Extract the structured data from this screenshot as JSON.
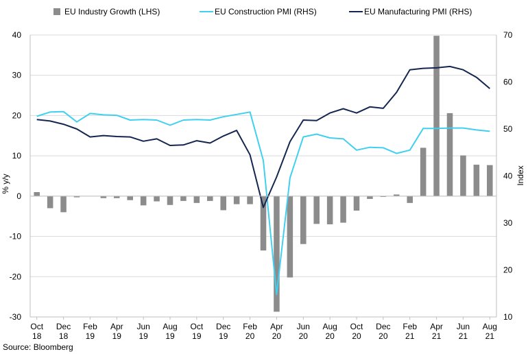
{
  "chart_data": {
    "type": "bar+line",
    "title": "",
    "legend": [
      {
        "name": "EU Industry Growth (LHS)",
        "kind": "bar",
        "color": "#8c8c8c"
      },
      {
        "name": "EU Construction PMI (RHS)",
        "kind": "line",
        "color": "#3fd0f0"
      },
      {
        "name": "EU Manufacturing PMI (RHS)",
        "kind": "line",
        "color": "#14264f"
      }
    ],
    "ylabel_left": "% y/y",
    "ylabel_right": "Index",
    "ylim_left": [
      -30,
      40
    ],
    "ylim_right": [
      10,
      70
    ],
    "yticks_left": [
      40,
      30,
      20,
      10,
      0,
      -10,
      -20,
      -30
    ],
    "yticks_right": [
      70,
      60,
      50,
      40,
      30,
      20,
      10
    ],
    "months": [
      "Oct 18",
      "Nov 18",
      "Dec 18",
      "Jan 19",
      "Feb 19",
      "Mar 19",
      "Apr 19",
      "May 19",
      "Jun 19",
      "Jul 19",
      "Aug 19",
      "Sep 19",
      "Oct 19",
      "Nov 19",
      "Dec 19",
      "Jan 20",
      "Feb 20",
      "Mar 20",
      "Apr 20",
      "May 20",
      "Jun 20",
      "Jul 20",
      "Aug 20",
      "Sep 20",
      "Oct 20",
      "Nov 20",
      "Dec 20",
      "Jan 21",
      "Feb 21",
      "Mar 21",
      "Apr 21",
      "May 21",
      "Jun 21",
      "Jul 21",
      "Aug 21"
    ],
    "x_tick_labels": [
      {
        "top": "Oct",
        "bottom": "18"
      },
      {
        "top": "Dec",
        "bottom": "18"
      },
      {
        "top": "Feb",
        "bottom": "19"
      },
      {
        "top": "Apr",
        "bottom": "19"
      },
      {
        "top": "Jun",
        "bottom": "19"
      },
      {
        "top": "Aug",
        "bottom": "19"
      },
      {
        "top": "Oct",
        "bottom": "19"
      },
      {
        "top": "Dec",
        "bottom": "19"
      },
      {
        "top": "Feb",
        "bottom": "20"
      },
      {
        "top": "Apr",
        "bottom": "20"
      },
      {
        "top": "Jun",
        "bottom": "20"
      },
      {
        "top": "Aug",
        "bottom": "20"
      },
      {
        "top": "Oct",
        "bottom": "20"
      },
      {
        "top": "Dec",
        "bottom": "20"
      },
      {
        "top": "Feb",
        "bottom": "21"
      },
      {
        "top": "Apr",
        "bottom": "21"
      },
      {
        "top": "Jun",
        "bottom": "21"
      },
      {
        "top": "Aug",
        "bottom": "21"
      }
    ],
    "series": [
      {
        "name": "EU Industry Growth (LHS)",
        "axis": "left",
        "type": "bar",
        "values": [
          1.0,
          -3.0,
          -4.0,
          -0.3,
          0,
          -0.5,
          -0.5,
          -1.0,
          -2.3,
          -1.3,
          -2.2,
          -1.2,
          -1.7,
          -1.2,
          -3.5,
          -2.0,
          -2.0,
          -13.5,
          -28.7,
          -20.2,
          -11.9,
          -6.9,
          -7.0,
          -6.6,
          -3.6,
          -0.7,
          -0.2,
          0.4,
          -1.7,
          12.0,
          39.8,
          20.6,
          10.1,
          7.8,
          7.7
        ]
      },
      {
        "name": "EU Construction PMI (RHS)",
        "axis": "right",
        "type": "line",
        "values": [
          52.7,
          53.6,
          53.7,
          51.5,
          53.3,
          53.0,
          52.9,
          51.9,
          52.0,
          51.9,
          50.8,
          51.9,
          52.0,
          51.9,
          52.6,
          53.1,
          53.6,
          43.3,
          14.8,
          39.6,
          48.3,
          48.9,
          48.1,
          47.9,
          45.5,
          46.1,
          46.0,
          44.8,
          45.5,
          50.1,
          50.1,
          50.2,
          50.2,
          49.8,
          49.5
        ]
      },
      {
        "name": "EU Manufacturing PMI (RHS)",
        "axis": "right",
        "type": "line",
        "values": [
          52.0,
          51.7,
          51.0,
          50.0,
          48.3,
          48.6,
          48.4,
          48.3,
          47.4,
          47.9,
          46.5,
          46.6,
          47.5,
          47.0,
          48.5,
          49.7,
          44.5,
          33.3,
          39.8,
          47.3,
          51.9,
          51.8,
          53.4,
          54.3,
          53.4,
          54.7,
          54.4,
          57.8,
          62.6,
          62.9,
          63.0,
          63.3,
          62.6,
          61.0,
          58.6
        ]
      }
    ],
    "source": "Source: Bloomberg"
  }
}
